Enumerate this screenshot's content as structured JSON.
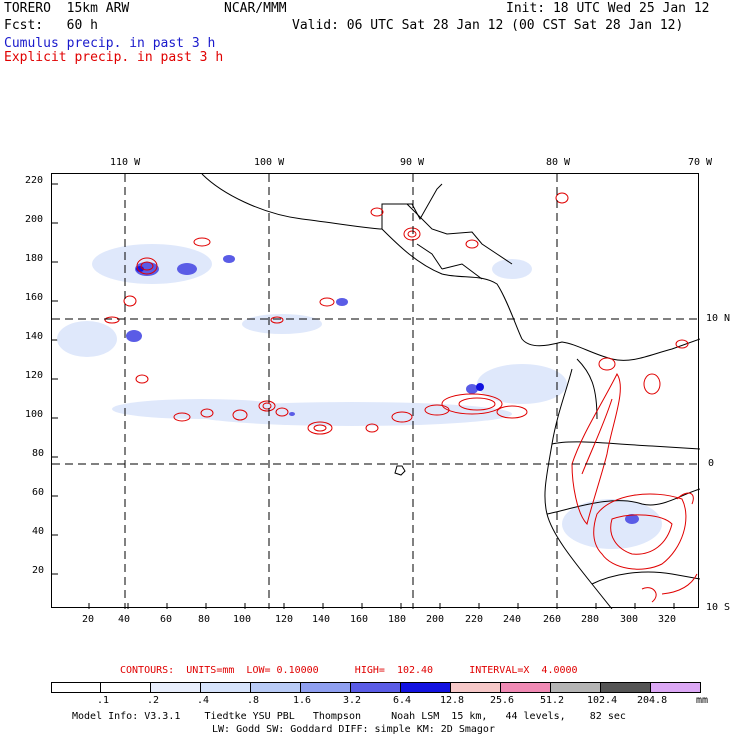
{
  "header": {
    "model": "TORERO  15km ARW",
    "org": "NCAR/MMM",
    "init": "Init: 18 UTC Wed 25 Jan 12",
    "fcst": "Fcst:   60 h",
    "valid": "Valid: 06 UTC Sat 28 Jan 12 (00 CST Sat 28 Jan 12)",
    "field1": "Cumulus precip. in past 3 h",
    "field2": "Explicit precip. in past 3 h"
  },
  "colors": {
    "blue_text": "#1a1acc",
    "red_text": "#e00000"
  },
  "map": {
    "top_lon_labels": [
      "110 W",
      "100 W",
      "90 W",
      "80 W",
      "70 W"
    ],
    "right_lat_labels": [
      "10 N",
      "0",
      "10 S"
    ],
    "y_ticks": [
      "220",
      "200",
      "180",
      "160",
      "140",
      "120",
      "100",
      "80",
      "60",
      "40",
      "20"
    ],
    "x_ticks": [
      "20",
      "40",
      "60",
      "80",
      "100",
      "120",
      "140",
      "160",
      "180",
      "200",
      "220",
      "240",
      "260",
      "280",
      "300",
      "320"
    ]
  },
  "legend": {
    "contours": "CONTOURS:  UNITS=mm  LOW= 0.10000      HIGH=  102.40      INTERVAL=X  4.0000",
    "units": "mm",
    "labels": [
      ".1",
      ".2",
      ".4",
      ".8",
      "1.6",
      "3.2",
      "6.4",
      "12.8",
      "25.6",
      "51.2",
      "102.4",
      "204.8"
    ],
    "colors": [
      "#ffffff",
      "#ffffff",
      "#e8eefc",
      "#d6e3fb",
      "#b9cbf6",
      "#8f9ff0",
      "#5a5ce6",
      "#1212e0",
      "#f6c8c8",
      "#f08ab4",
      "#b4b4b4",
      "#555555",
      "#dca8f5"
    ]
  },
  "footer": {
    "line1": "Model Info: V3.3.1    Tiedtke YSU PBL   Thompson     Noah LSM  15 km,   44 levels,    82 sec",
    "line2": "LW: Godd SW: Goddard DIFF: simple KM: 2D Smagor"
  }
}
